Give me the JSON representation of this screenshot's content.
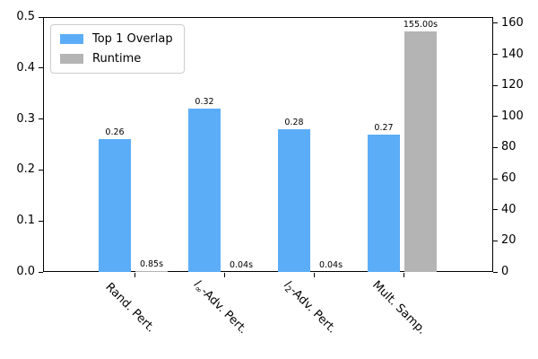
{
  "chart_data": {
    "type": "bar",
    "title": "",
    "xlabel": "",
    "ylabel_left": "",
    "ylabel_right": "",
    "grid": false,
    "legend_position": "upper left",
    "categories": [
      {
        "name": "Rand. Pert.",
        "parts": [
          {
            "t": "Rand. Pert."
          }
        ]
      },
      {
        "name": "l∞-Adv. Pert.",
        "parts": [
          {
            "t": "l",
            "style": "italic"
          },
          {
            "t": "∞",
            "style": "sub"
          },
          {
            "t": "-Adv. Pert."
          }
        ]
      },
      {
        "name": "l2-Adv. Pert.",
        "parts": [
          {
            "t": "l",
            "style": "italic"
          },
          {
            "t": "2",
            "style": "sub"
          },
          {
            "t": "-Adv. Pert."
          }
        ]
      },
      {
        "name": "Mult. Samp.",
        "parts": [
          {
            "t": "Mult. Samp."
          }
        ]
      }
    ],
    "series": [
      {
        "name": "Top 1 Overlap",
        "axis": "left",
        "color": "#5cadf7",
        "values": [
          0.26,
          0.32,
          0.28,
          0.27
        ],
        "value_labels": [
          "0.26",
          "0.32",
          "0.28",
          "0.27"
        ]
      },
      {
        "name": "Runtime",
        "axis": "right",
        "color": "#b4b4b4",
        "values": [
          0.85,
          0.04,
          0.04,
          155.0
        ],
        "value_labels": [
          "0.85s",
          "0.04s",
          "0.04s",
          "155.00s"
        ]
      }
    ],
    "left_axis": {
      "ylim": [
        0,
        0.5
      ],
      "tick_values": [
        0,
        0.1,
        0.2,
        0.3,
        0.4,
        0.5
      ],
      "tick_labels": [
        "0.0",
        "0.1",
        "0.2",
        "0.3",
        "0.4",
        "0.5"
      ]
    },
    "right_axis": {
      "ylim": [
        0,
        164
      ],
      "tick_values": [
        0,
        20,
        40,
        60,
        80,
        100,
        120,
        140,
        160
      ],
      "tick_labels": [
        "0",
        "20",
        "40",
        "60",
        "80",
        "100",
        "120",
        "140",
        "160"
      ]
    },
    "colors": {
      "spine": "#000000",
      "background": "#ffffff",
      "legend_border": "#cccccc"
    }
  }
}
